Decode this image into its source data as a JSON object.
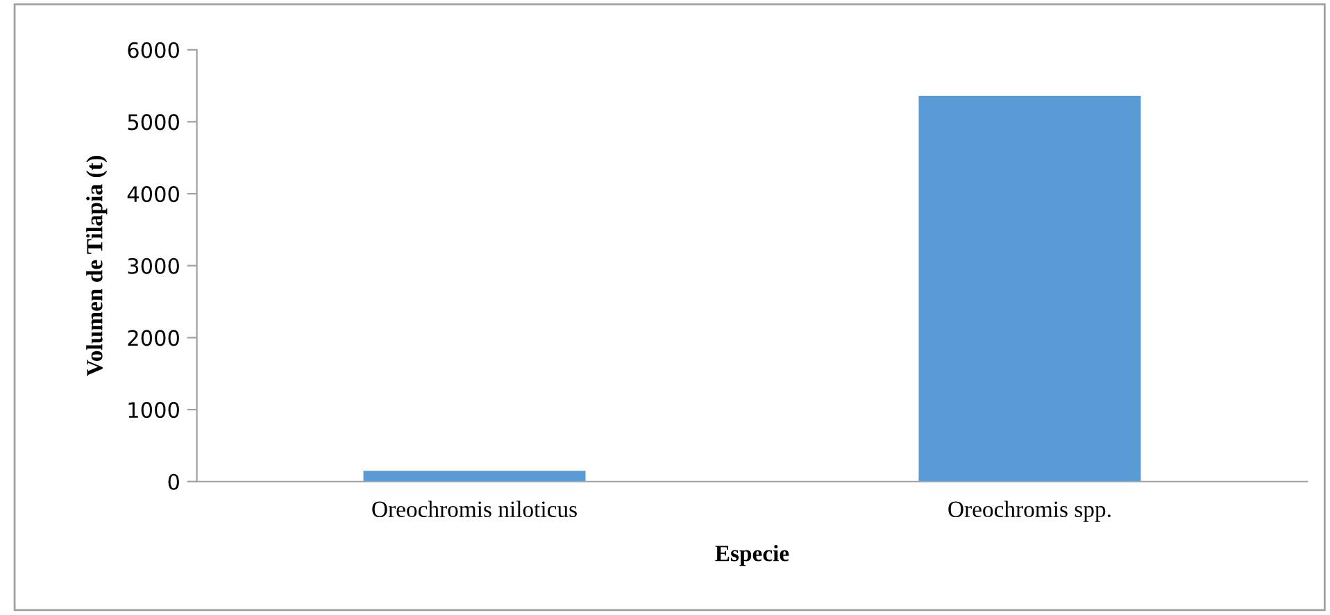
{
  "chart_data": {
    "type": "bar",
    "xlabel": "Especie",
    "ylabel": "Volumen de Tilapia (t)",
    "categories": [
      "Oreochromis niloticus",
      "Oreochromis spp."
    ],
    "values": [
      150,
      5360
    ],
    "color": "#5b9bd5",
    "ylim": [
      0,
      6000
    ],
    "yticks": [
      0,
      1000,
      2000,
      3000,
      4000,
      5000,
      6000
    ],
    "grid": false
  }
}
